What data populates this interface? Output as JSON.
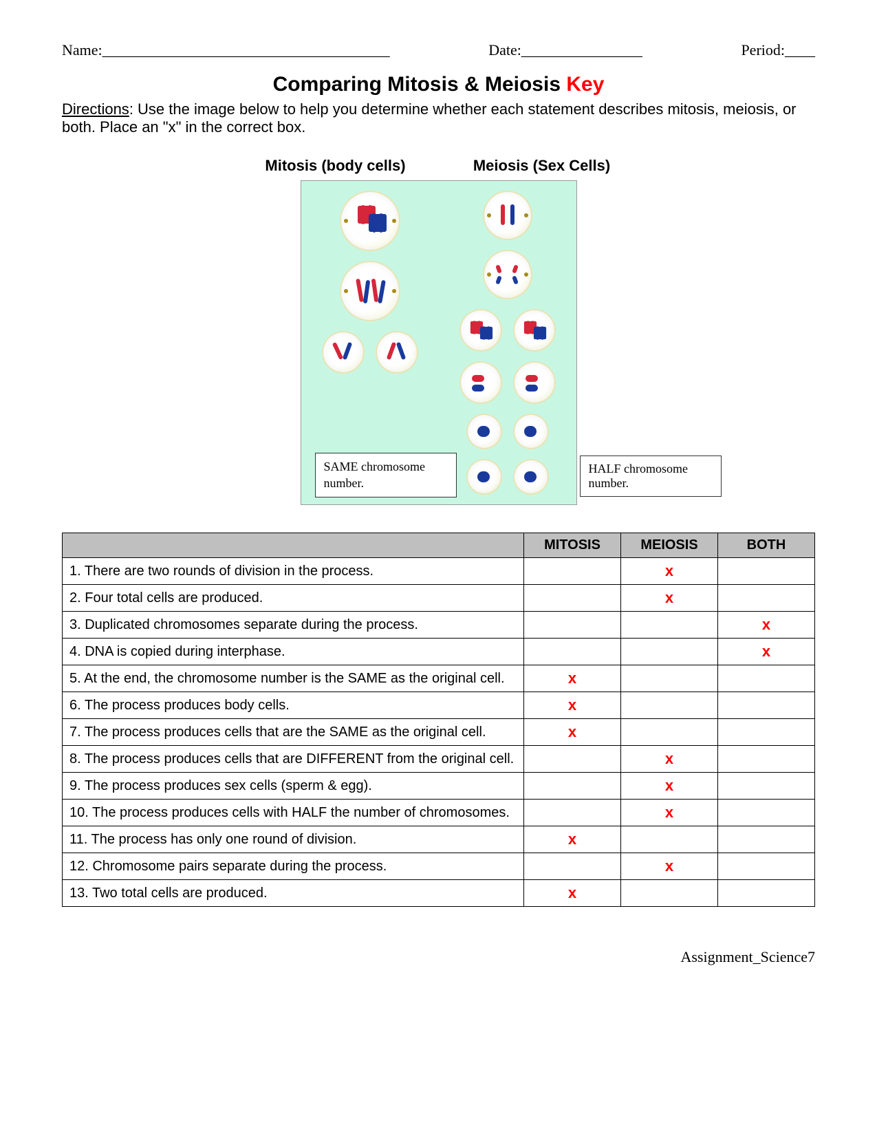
{
  "header": {
    "name_label": "Name:______________________________________",
    "date_label": "Date:________________",
    "period_label": "Period:____"
  },
  "title": {
    "main": "Comparing Mitosis & Meiosis ",
    "key": "Key"
  },
  "directions": {
    "label": "Directions",
    "text": ": Use the image below to help you determine whether each statement describes mitosis, meiosis, or both.  Place an \"x\" in the correct box."
  },
  "diagram": {
    "mitosis_title": "Mitosis (body cells)",
    "meiosis_title": "Meiosis (Sex Cells)",
    "note_left": "SAME chromosome number.",
    "note_right": "HALF chromosome number.",
    "bg_color": "#c7f7e3",
    "chrom_red": "#d6263a",
    "chrom_blue": "#1a3a9b"
  },
  "table": {
    "headers": {
      "statement": "",
      "mitosis": "MITOSIS",
      "meiosis": "MEIOSIS",
      "both": "BOTH"
    },
    "mark": "x",
    "rows": [
      {
        "n": "1. There are two rounds of division in the process.",
        "mitosis": "",
        "meiosis": "x",
        "both": ""
      },
      {
        "n": "2. Four total cells are produced.",
        "mitosis": "",
        "meiosis": "x",
        "both": ""
      },
      {
        "n": "3. Duplicated chromosomes separate during the process.",
        "mitosis": "",
        "meiosis": "",
        "both": "x"
      },
      {
        "n": "4. DNA is copied during interphase.",
        "mitosis": "",
        "meiosis": "",
        "both": "x"
      },
      {
        "n": "5. At the end, the chromosome number is the SAME as the original cell.",
        "mitosis": "x",
        "meiosis": "",
        "both": ""
      },
      {
        "n": "6. The process produces body cells.",
        "mitosis": "x",
        "meiosis": "",
        "both": ""
      },
      {
        "n": "7. The process produces cells that are the SAME as the original cell.",
        "mitosis": "x",
        "meiosis": "",
        "both": ""
      },
      {
        "n": "8. The process produces cells that are DIFFERENT from the original cell.",
        "mitosis": "",
        "meiosis": "x",
        "both": ""
      },
      {
        "n": "9. The process produces sex cells (sperm & egg).",
        "mitosis": "",
        "meiosis": "x",
        "both": ""
      },
      {
        "n": "10. The process produces cells with HALF the number of chromosomes.",
        "mitosis": "",
        "meiosis": "x",
        "both": ""
      },
      {
        "n": "11. The process has only one round of division.",
        "mitosis": "x",
        "meiosis": "",
        "both": ""
      },
      {
        "n": "12. Chromosome pairs separate during the process.",
        "mitosis": "",
        "meiosis": "x",
        "both": ""
      },
      {
        "n": "13. Two total cells are produced.",
        "mitosis": "x",
        "meiosis": "",
        "both": ""
      }
    ]
  },
  "footer": "Assignment_Science7"
}
